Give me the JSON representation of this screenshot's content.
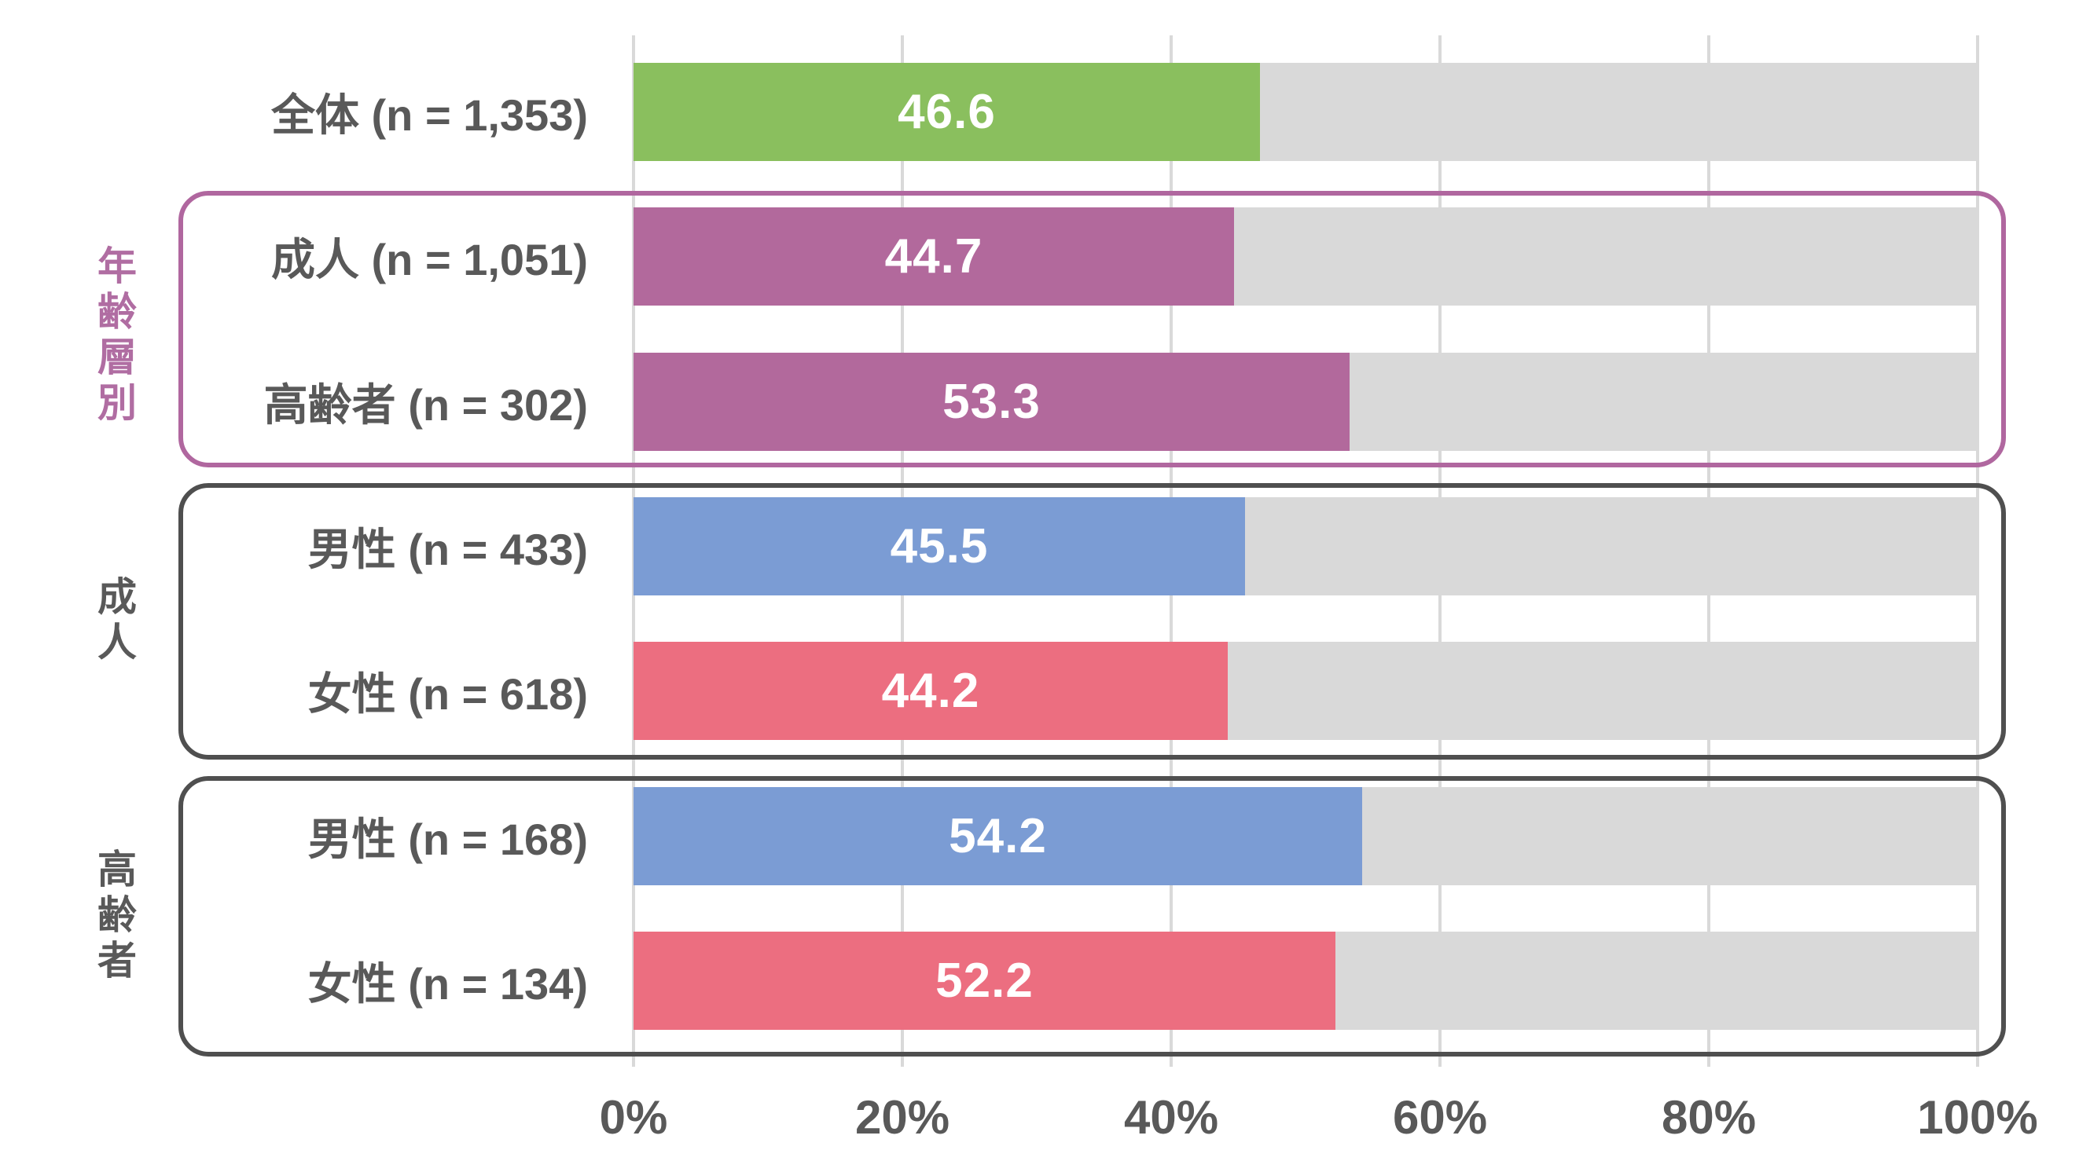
{
  "chart_data": {
    "type": "bar",
    "orientation": "horizontal",
    "title": "",
    "categories": [
      "全体 (n = 1,353)",
      "成人 (n = 1,051)",
      "高齢者 (n = 302)",
      "男性 (n = 433)",
      "女性 (n = 618)",
      "男性 (n = 168)",
      "女性 (n = 134)"
    ],
    "values": [
      46.6,
      44.7,
      53.3,
      45.5,
      44.2,
      54.2,
      52.2
    ],
    "value_labels": [
      "46.6",
      "44.7",
      "53.3",
      "45.5",
      "44.2",
      "54.2",
      "52.2"
    ],
    "bar_colors": [
      "#8abf5e",
      "#b2699c",
      "#b2699c",
      "#7b9cd4",
      "#ec6e80",
      "#7b9cd4",
      "#ec6e80"
    ],
    "xlim": [
      0,
      100
    ],
    "x_tick_labels": [
      "0%",
      "20%",
      "40%",
      "60%",
      "80%",
      "100%"
    ],
    "grid": true,
    "legend": "none",
    "track_color": "#d9d9d9",
    "gridline_color": "#d9d9d9",
    "category_label_color": "#595959",
    "value_label_color": "#ffffff",
    "axis_label_color": "#595959",
    "groups": [
      {
        "label": "年齢層別",
        "row_start": 1,
        "row_end": 2,
        "border_color": "#b0679f",
        "label_color": "#b06da2"
      },
      {
        "label": "成人",
        "row_start": 3,
        "row_end": 4,
        "border_color": "#4f4f4f",
        "label_color": "#595959"
      },
      {
        "label": "高齢者",
        "row_start": 5,
        "row_end": 6,
        "border_color": "#4f4f4f",
        "label_color": "#595959"
      }
    ]
  }
}
